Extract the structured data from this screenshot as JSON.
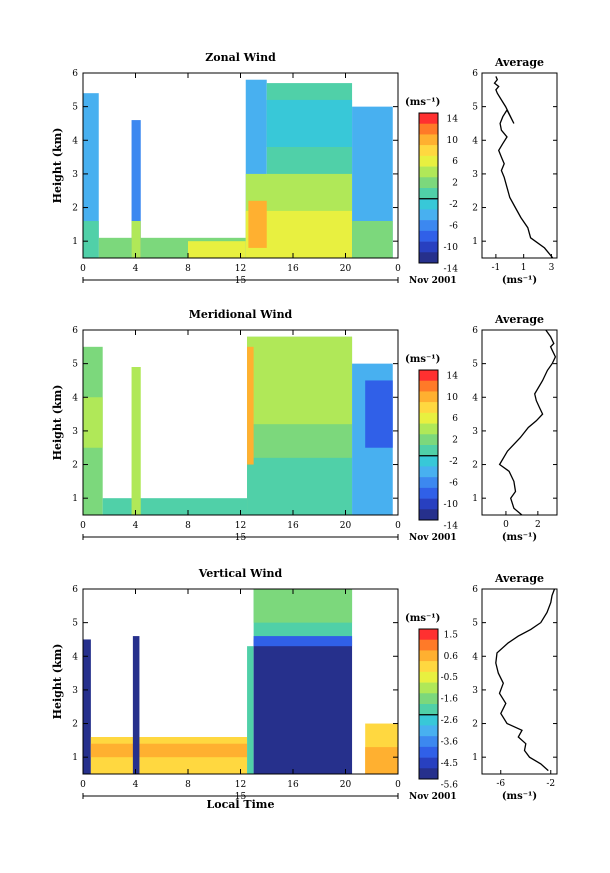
{
  "figure": {
    "panels": [
      {
        "id": "zonal",
        "title": "Zonal Wind",
        "ylabel": "Height (km)",
        "xticks": [
          "0",
          "4",
          "8",
          "12",
          "16",
          "20",
          "0"
        ],
        "yticks": [
          "1",
          "2",
          "3",
          "4",
          "5",
          "6"
        ],
        "day_label": "15",
        "date_label": "Nov 2001",
        "colorbar": {
          "unit": "(ms⁻¹)",
          "ticks": [
            "14",
            "10",
            "6",
            "2",
            "-2",
            "-6",
            "-10",
            "-14"
          ],
          "colors": [
            "#ff3030",
            "#ff7a28",
            "#ffb030",
            "#ffd840",
            "#e8f040",
            "#b0e858",
            "#7cd87c",
            "#50d0a8",
            "#38c8d8",
            "#48b0f0",
            "#3c88f0",
            "#3060e8",
            "#2840c0",
            "#26308c"
          ]
        },
        "avg": {
          "title": "Average",
          "xlabel": "(ms⁻¹)",
          "xticks": [
            "-1",
            "1",
            "3"
          ],
          "yticks": [
            "1",
            "2",
            "3",
            "4",
            "5",
            "6"
          ]
        }
      },
      {
        "id": "meridional",
        "title": "Meridional Wind",
        "ylabel": "Height (km)",
        "xticks": [
          "0",
          "4",
          "8",
          "12",
          "16",
          "20",
          "0"
        ],
        "yticks": [
          "1",
          "2",
          "3",
          "4",
          "5",
          "6"
        ],
        "day_label": "15",
        "date_label": "Nov 2001",
        "colorbar": {
          "unit": "(ms⁻¹)",
          "ticks": [
            "14",
            "10",
            "6",
            "2",
            "-2",
            "-6",
            "-10",
            "-14"
          ],
          "colors": [
            "#ff3030",
            "#ff7a28",
            "#ffb030",
            "#ffd840",
            "#e8f040",
            "#b0e858",
            "#7cd87c",
            "#50d0a8",
            "#38c8d8",
            "#48b0f0",
            "#3c88f0",
            "#3060e8",
            "#2840c0",
            "#26308c"
          ]
        },
        "avg": {
          "title": "Average",
          "xlabel": "(ms⁻¹)",
          "xticks": [
            "0",
            "2"
          ],
          "yticks": [
            "1",
            "2",
            "3",
            "4",
            "5",
            "6"
          ]
        }
      },
      {
        "id": "vertical",
        "title": "Vertical Wind",
        "ylabel": "Height (km)",
        "xlabel": "Local Time",
        "xticks": [
          "0",
          "4",
          "8",
          "12",
          "16",
          "20",
          "0"
        ],
        "yticks": [
          "1",
          "2",
          "3",
          "4",
          "5",
          "6"
        ],
        "day_label": "15",
        "date_label": "Nov 2001",
        "colorbar": {
          "unit": "(ms⁻¹)",
          "ticks": [
            "1.5",
            "0.6",
            "-0.5",
            "-1.6",
            "-2.6",
            "-3.6",
            "-4.5",
            "-5.6"
          ],
          "colors": [
            "#ff3030",
            "#ff7a28",
            "#ffb030",
            "#ffd840",
            "#e8f040",
            "#b0e858",
            "#7cd87c",
            "#50d0a8",
            "#38c8d8",
            "#48b0f0",
            "#3c88f0",
            "#3060e8",
            "#2840c0",
            "#26308c"
          ]
        },
        "avg": {
          "title": "Average",
          "xlabel": "(ms⁻¹)",
          "xticks": [
            "-6",
            "-2"
          ],
          "yticks": [
            "1",
            "2",
            "3",
            "4",
            "5",
            "6"
          ]
        }
      }
    ]
  },
  "chart_data": [
    {
      "type": "heatmap",
      "title": "Zonal Wind",
      "ylabel": "Height (km)",
      "xlim": [
        0,
        24
      ],
      "ylim": [
        0.5,
        6
      ],
      "colorbar_range": [
        -14,
        14
      ],
      "colorbar_unit": "(ms⁻¹)",
      "data_segments": [
        {
          "x": [
            0.0,
            1.2
          ],
          "y": [
            0.5,
            5.4
          ],
          "value": -2
        },
        {
          "x": [
            3.7,
            4.4
          ],
          "y": [
            0.5,
            4.6
          ],
          "value": -3
        },
        {
          "x": [
            12.4,
            14.0
          ],
          "y": [
            0.5,
            5.8
          ],
          "value": 1
        },
        {
          "x": [
            14.0,
            20.5
          ],
          "y": [
            0.5,
            5.7
          ],
          "value": 0
        },
        {
          "x": [
            20.5,
            23.6
          ],
          "y": [
            0.5,
            5.0
          ],
          "value": -1
        }
      ]
    },
    {
      "type": "line",
      "title": "Average",
      "xlabel": "(ms⁻¹)",
      "ylabel": "Height (km)",
      "xlim": [
        -2,
        3.4
      ],
      "ylim": [
        0.5,
        6
      ],
      "x": [
        3.1,
        2.5,
        1.5,
        1.3,
        0.8,
        0.4,
        0.0,
        -0.2,
        -0.4,
        -0.6,
        -0.4,
        -0.6,
        -0.8,
        -0.5,
        -0.2,
        -0.6,
        -0.7,
        -0.5,
        -0.2,
        0.3,
        -0.3,
        -0.6,
        -0.9,
        -1.0,
        -0.8,
        -1.1,
        -0.9,
        -1.0
      ],
      "y": [
        0.5,
        0.8,
        1.1,
        1.4,
        1.7,
        2.0,
        2.3,
        2.6,
        2.9,
        3.1,
        3.3,
        3.5,
        3.7,
        3.9,
        4.1,
        4.3,
        4.5,
        4.7,
        4.9,
        4.5,
        5.0,
        5.2,
        5.4,
        5.5,
        5.6,
        5.7,
        5.8,
        5.9
      ]
    },
    {
      "type": "heatmap",
      "title": "Meridional Wind",
      "ylabel": "Height (km)",
      "xlim": [
        0,
        24
      ],
      "ylim": [
        0.5,
        6
      ],
      "colorbar_range": [
        -14,
        14
      ],
      "colorbar_unit": "(ms⁻¹)",
      "data_segments": [
        {
          "x": [
            0.0,
            1.5
          ],
          "y": [
            0.5,
            5.5
          ],
          "value": 1
        },
        {
          "x": [
            3.7,
            4.4
          ],
          "y": [
            0.5,
            4.9
          ],
          "value": 0
        },
        {
          "x": [
            12.5,
            20.5
          ],
          "y": [
            0.5,
            5.8
          ],
          "value": -1
        },
        {
          "x": [
            20.5,
            23.6
          ],
          "y": [
            0.5,
            5.0
          ],
          "value": -6
        }
      ]
    },
    {
      "type": "line",
      "title": "Average",
      "xlabel": "(ms⁻¹)",
      "ylabel": "Height (km)",
      "xlim": [
        -1.5,
        3.2
      ],
      "ylim": [
        0.5,
        6
      ],
      "x": [
        1.0,
        0.5,
        0.3,
        0.6,
        0.5,
        0.2,
        -0.4,
        0.1,
        0.9,
        1.4,
        1.9,
        2.3,
        2.1,
        1.9,
        1.8,
        2.3,
        2.6,
        2.9,
        3.1,
        2.9,
        2.8,
        3.0,
        2.8,
        2.5
      ],
      "y": [
        0.5,
        0.7,
        1.0,
        1.2,
        1.5,
        1.8,
        2.0,
        2.4,
        2.8,
        3.1,
        3.3,
        3.5,
        3.7,
        3.9,
        4.1,
        4.5,
        4.8,
        5.0,
        5.2,
        5.4,
        5.5,
        5.6,
        5.8,
        6.0
      ]
    },
    {
      "type": "heatmap",
      "title": "Vertical Wind",
      "xlabel": "Local Time",
      "ylabel": "Height (km)",
      "xlim": [
        0,
        24
      ],
      "ylim": [
        0.5,
        6
      ],
      "colorbar_range": [
        -5.6,
        1.5
      ],
      "colorbar_unit": "(ms⁻¹)",
      "data_segments": [
        {
          "x": [
            0.0,
            0.6
          ],
          "y": [
            0.5,
            4.5
          ],
          "value": -5.6
        },
        {
          "x": [
            0.6,
            12.5
          ],
          "y": [
            0.5,
            1.6
          ],
          "value": 0.3
        },
        {
          "x": [
            3.8,
            4.3
          ],
          "y": [
            0.5,
            4.6
          ],
          "value": -5.6
        },
        {
          "x": [
            13.0,
            20.5
          ],
          "y": [
            0.5,
            4.5
          ],
          "value": -5.6
        },
        {
          "x": [
            13.0,
            20.5
          ],
          "y": [
            4.5,
            6.0
          ],
          "value": -2.5
        },
        {
          "x": [
            21.5,
            24.0
          ],
          "y": [
            0.5,
            2.0
          ],
          "value": 0.4
        }
      ]
    },
    {
      "type": "line",
      "title": "Average",
      "xlabel": "(ms⁻¹)",
      "ylabel": "Height (km)",
      "xlim": [
        -7.5,
        -1.5
      ],
      "ylim": [
        0.5,
        6
      ],
      "x": [
        -2.2,
        -2.8,
        -3.7,
        -4.1,
        -4.0,
        -4.6,
        -4.3,
        -5.5,
        -6.0,
        -5.6,
        -6.1,
        -5.8,
        -6.2,
        -6.4,
        -6.3,
        -5.4,
        -4.6,
        -3.6,
        -2.8,
        -2.3,
        -2.0,
        -1.9,
        -1.7
      ],
      "y": [
        0.6,
        0.8,
        1.0,
        1.2,
        1.4,
        1.6,
        1.8,
        2.0,
        2.3,
        2.6,
        2.9,
        3.2,
        3.5,
        3.8,
        4.1,
        4.4,
        4.6,
        4.8,
        5.0,
        5.3,
        5.6,
        5.8,
        6.0
      ]
    }
  ]
}
